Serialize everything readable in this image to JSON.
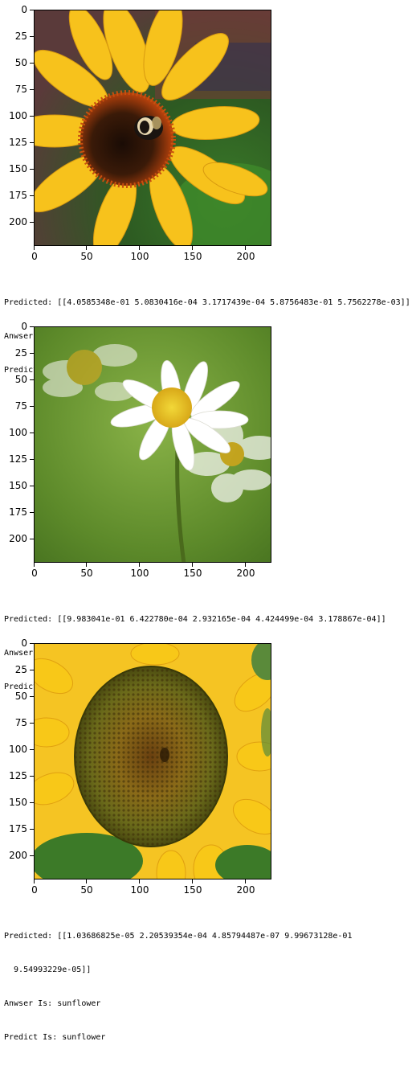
{
  "axes": {
    "y_ticks": [
      "0",
      "25",
      "50",
      "75",
      "100",
      "125",
      "150",
      "175",
      "200"
    ],
    "x_ticks": [
      "0",
      "50",
      "100",
      "150",
      "200"
    ]
  },
  "results": [
    {
      "image_alt": "sunflower with bee",
      "predicted_line": "Predicted: [[4.0585348e-01 5.0830416e-04 3.1717439e-04 5.8756483e-01 5.7562278e-03]]",
      "predicted_line_2": "",
      "answer_line": "Anwser Is: sunflower",
      "predict_line": "Predict Is: sunflower"
    },
    {
      "image_alt": "white daisy",
      "predicted_line": "Predicted: [[9.983041e-01 6.422780e-04 2.932165e-04 4.424499e-04 3.178867e-04]]",
      "predicted_line_2": "",
      "answer_line": "Anwser Is: daisy",
      "predict_line": "Predict Is: daisy"
    },
    {
      "image_alt": "sunflower close-up",
      "predicted_line": "Predicted: [[1.03686825e-05 2.20539354e-04 4.85794487e-07 9.99673128e-01",
      "predicted_line_2": "  9.54993229e-05]]",
      "answer_line": "Anwser Is: sunflower",
      "predict_line": "Predict Is: sunflower"
    }
  ]
}
